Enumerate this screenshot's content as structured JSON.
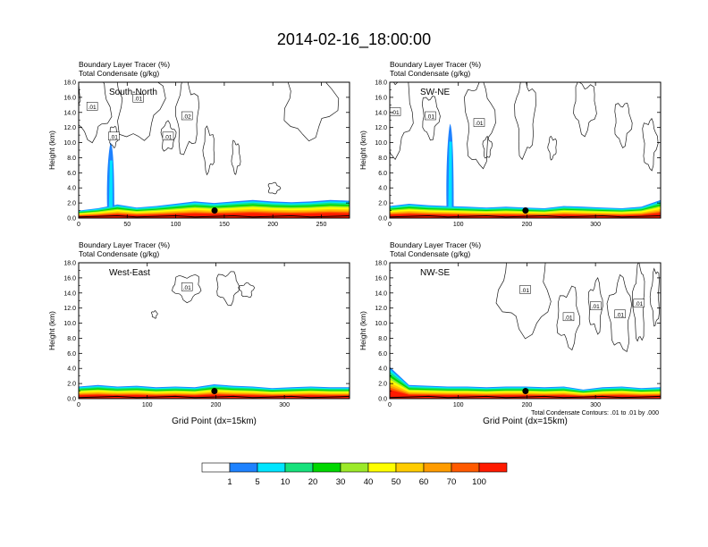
{
  "title": "2014-02-16_18:00:00",
  "colors": {
    "levels": [
      "#ffffff",
      "#1e82ff",
      "#00e5ff",
      "#16e27c",
      "#00d800",
      "#9cea29",
      "#ffff00",
      "#ffcc00",
      "#ff9c00",
      "#ff5a00",
      "#ff1a00"
    ],
    "contour": "#1a1a1a",
    "terrain": "#000000"
  },
  "footnote": "Total Condensate Contours: .01 to .01 by .000",
  "chart_data": [
    {
      "type": "heatmap",
      "panel": "top-left",
      "title": "Boundary Layer Tracer   (%)",
      "subtitle": "Total Condensate   (g/kg)",
      "label": "South-North",
      "ylabel": "Height (km)",
      "xlabel": "",
      "xlim": [
        0,
        279
      ],
      "ylim": [
        0,
        18
      ],
      "xticks": [
        0,
        50,
        100,
        150,
        200,
        250
      ],
      "yticks": [
        "0.0",
        "2.0",
        "4.0",
        "6.0",
        "8.0",
        "10.0",
        "12.0",
        "14.0",
        "16.0",
        "18.0"
      ],
      "contour_labels": [
        ".01",
        ".01",
        ".01",
        ".01",
        ".02"
      ],
      "marker": {
        "x": 140,
        "y": 1.0
      },
      "tracer_top_km": [
        1.0,
        1.3,
        1.8,
        1.4,
        1.6,
        1.9,
        2.2,
        2.0,
        2.2,
        2.4,
        2.2,
        2.1,
        2.2,
        2.4,
        2.3
      ],
      "plume": {
        "x": 33,
        "top_km": 10.0
      }
    },
    {
      "type": "heatmap",
      "panel": "top-right",
      "title": "Boundary Layer Tracer   (%)",
      "subtitle": "Total Condensate   (g/kg)",
      "label": "SW-NE",
      "ylabel": "Height (km)",
      "xlabel": "",
      "xlim": [
        0,
        395
      ],
      "ylim": [
        0,
        18
      ],
      "xticks": [
        0,
        100,
        200,
        300
      ],
      "yticks": [
        "0.0",
        "2.0",
        "4.0",
        "6.0",
        "8.0",
        "10.0",
        "12.0",
        "14.0",
        "16.0",
        "18.0"
      ],
      "contour_labels": [
        ".01",
        ".01",
        ".01"
      ],
      "marker": {
        "x": 198,
        "y": 1.0
      },
      "tracer_top_km": [
        1.6,
        1.9,
        1.7,
        1.6,
        1.5,
        1.4,
        1.5,
        1.4,
        1.3,
        1.6,
        1.5,
        1.4,
        1.3,
        1.5,
        2.4
      ],
      "plume": {
        "x": 88,
        "top_km": 12.5
      }
    },
    {
      "type": "heatmap",
      "panel": "bottom-left",
      "title": "Boundary Layer Tracer   (%)",
      "subtitle": "Total Condensate   (g/kg)",
      "label": "West-East",
      "ylabel": "Height (km)",
      "xlabel": "Grid Point (dx=15km)",
      "xlim": [
        0,
        395
      ],
      "ylim": [
        0,
        18
      ],
      "xticks": [
        0,
        100,
        200,
        300
      ],
      "yticks": [
        "0.0",
        "2.0",
        "4.0",
        "6.0",
        "8.0",
        "10.0",
        "12.0",
        "14.0",
        "16.0",
        "18.0"
      ],
      "contour_labels": [
        ".01"
      ],
      "marker": {
        "x": 198,
        "y": 1.0
      },
      "tracer_top_km": [
        1.6,
        1.8,
        1.6,
        1.7,
        1.5,
        1.6,
        1.5,
        1.9,
        1.7,
        1.6,
        1.4,
        1.5,
        1.6,
        1.5,
        1.5
      ],
      "plume": null
    },
    {
      "type": "heatmap",
      "panel": "bottom-right",
      "title": "Boundary Layer Tracer   (%)",
      "subtitle": "Total Condensate   (g/kg)",
      "label": "NW-SE",
      "ylabel": "Height (km)",
      "xlabel": "Grid Point (dx=15km)",
      "xlim": [
        0,
        395
      ],
      "ylim": [
        0,
        18
      ],
      "xticks": [
        0,
        100,
        200,
        300
      ],
      "yticks": [
        "0.0",
        "2.0",
        "4.0",
        "6.0",
        "8.0",
        "10.0",
        "12.0",
        "14.0",
        "16.0",
        "18.0"
      ],
      "contour_labels": [
        ".01",
        ".01",
        ".01",
        ".01",
        ".01"
      ],
      "marker": {
        "x": 198,
        "y": 1.0
      },
      "tracer_top_km": [
        4.2,
        1.8,
        1.7,
        1.6,
        1.6,
        1.5,
        1.6,
        1.6,
        1.5,
        1.6,
        1.2,
        1.5,
        1.6,
        1.4,
        1.5
      ],
      "plume": null
    }
  ],
  "legend": {
    "labels": [
      "1",
      "5",
      "10",
      "20",
      "30",
      "40",
      "50",
      "60",
      "70",
      "100"
    ]
  }
}
